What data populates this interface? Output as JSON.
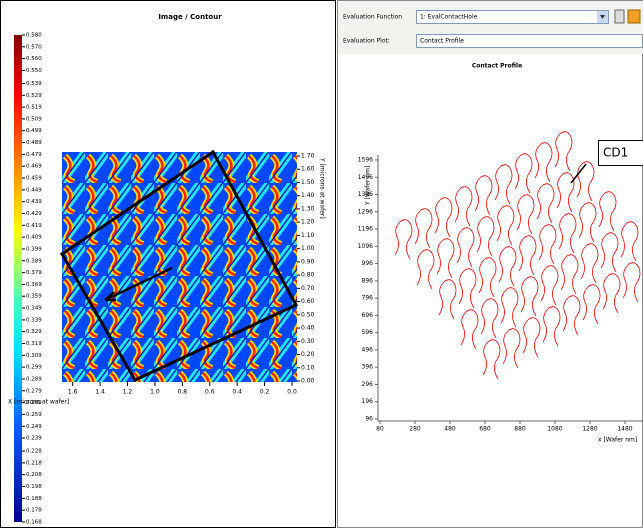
{
  "left_panel": {
    "title": "Image / Contour",
    "x_label": "X [microns at wafer]",
    "y_label": "Y [microns at wafer]",
    "xlim": [
      1.7,
      0
    ],
    "xticks": [
      1.6,
      1.4,
      1.2,
      {
        "value": 1,
        "label": "1.0"
      },
      0.8,
      0.6,
      0.4,
      0.2,
      {
        "value": 0,
        "label": "0.0"
      }
    ],
    "ylim": [
      0,
      1.7
    ],
    "yticks": [
      {
        "value": 1.7,
        "label": "1.70"
      },
      {
        "value": 1.6,
        "label": "1.60"
      },
      {
        "value": 1.5,
        "label": "1.50"
      },
      {
        "value": 1.4,
        "label": "1.40"
      },
      {
        "value": 1.3,
        "label": "1.30"
      },
      {
        "value": 1.2,
        "label": "1.20"
      },
      {
        "value": 1.1,
        "label": "1.10"
      },
      {
        "value": 1,
        "label": "1.00"
      },
      {
        "value": 0.9,
        "label": "0.90"
      },
      {
        "value": 0.8,
        "label": "0.80"
      },
      {
        "value": 0.7,
        "label": "0.70"
      },
      {
        "value": 0.6,
        "label": "0.60"
      },
      {
        "value": 0.5,
        "label": "0.50"
      },
      {
        "value": 0.4,
        "label": "0.40"
      },
      {
        "value": 0.3,
        "label": "0.30"
      },
      {
        "value": 0.2,
        "label": "0.20"
      },
      {
        "value": 0.1,
        "label": "0.10"
      },
      {
        "value": 0,
        "label": "0.00"
      }
    ],
    "colorbar": {
      "lim": [
        0.168,
        0.58
      ],
      "ticks": [
        {
          "value": 0.58,
          "label": "0.580"
        },
        {
          "value": 0.57,
          "label": "0.570"
        },
        {
          "value": 0.56,
          "label": "0.560"
        },
        {
          "value": 0.55,
          "label": "0.550"
        },
        0.539,
        0.529,
        0.519,
        0.509,
        0.499,
        0.489,
        0.479,
        0.469,
        0.459,
        0.449,
        0.439,
        0.429,
        0.419,
        0.409,
        0.399,
        0.389,
        0.379,
        0.369,
        0.359,
        0.349,
        0.339,
        0.329,
        0.319,
        0.309,
        0.299,
        0.289,
        0.279,
        0.269,
        0.259,
        0.249,
        0.239,
        0.228,
        0.218,
        0.208,
        0.198,
        0.188,
        0.178,
        0.168
      ]
    }
  },
  "right_panel": {
    "evaluation_function_label": "Evaluation Function",
    "evaluation_function": "1: EvalContactHole",
    "evaluation_plot_label": "Evaluation Plot:",
    "evaluation_plot": "Contact Profile",
    "plot": {
      "title": "Contact Profile",
      "x_label": "x [Wafer nm]",
      "y_label": "Y [Wafer nm]",
      "xlim": [
        80,
        1480
      ],
      "xticks": [
        80,
        280,
        480,
        680,
        880,
        1080,
        1280,
        1480
      ],
      "ylim": [
        96,
        1596
      ],
      "yticks": [
        96,
        196,
        296,
        396,
        496,
        596,
        696,
        796,
        896,
        996,
        1096,
        1196,
        1296,
        1396,
        1496,
        1596
      ],
      "annotation": "CD1",
      "color": "#ff0000"
    }
  }
}
